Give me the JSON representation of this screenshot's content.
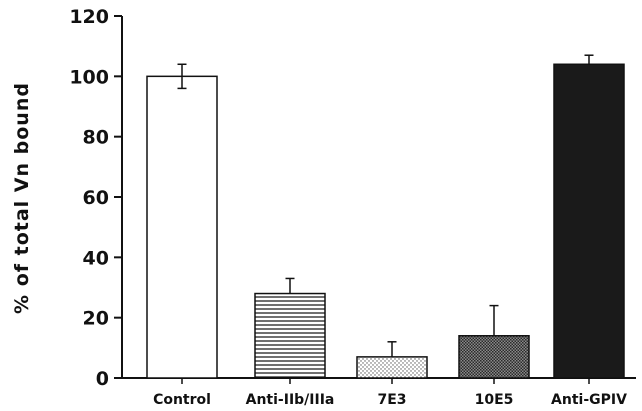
{
  "chart_data": {
    "type": "bar",
    "ylabel": "% of total Vn bound",
    "xlabel": "",
    "ylim": [
      0,
      120
    ],
    "yticks": [
      0,
      20,
      40,
      60,
      80,
      100,
      120
    ],
    "categories": [
      "Control",
      "Anti-IIb/IIIa",
      "7E3",
      "10E5",
      "Anti-GPIV"
    ],
    "values": [
      100,
      28,
      7,
      14,
      104
    ],
    "error_upper": [
      4,
      5,
      5,
      10,
      3
    ],
    "error_lower": [
      4,
      0,
      0,
      0,
      0
    ],
    "fills": [
      "white",
      "horizontal-lines",
      "dots",
      "crosshatch",
      "solid-black"
    ],
    "colors": {
      "bar_stroke": "#111111",
      "dark_fill": "#1a1a1a",
      "dots": "#555555"
    },
    "grid": false,
    "legend": "none"
  }
}
